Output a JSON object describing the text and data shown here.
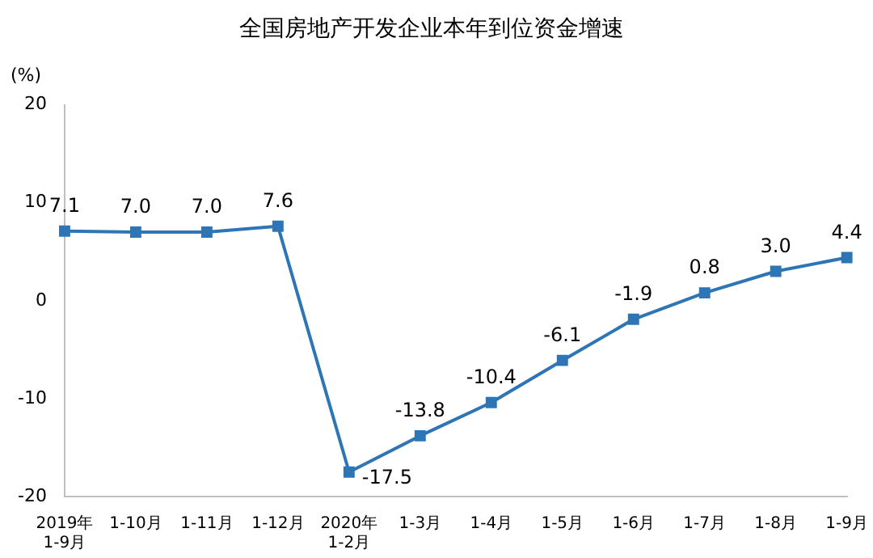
{
  "chart_data": {
    "type": "line",
    "title": "全国房地产开发企业本年到位资金增速",
    "ylabel": "(%)",
    "categories": [
      "2019年\n1-9月",
      "1-10月",
      "1-11月",
      "1-12月",
      "2020年\n1-2月",
      "1-3月",
      "1-4月",
      "1-5月",
      "1-6月",
      "1-7月",
      "1-8月",
      "1-9月"
    ],
    "series": [
      {
        "color": "#2e75b6",
        "values": [
          7.1,
          7.0,
          7.0,
          7.6,
          -17.5,
          -13.8,
          -10.4,
          -6.1,
          -1.9,
          0.8,
          3.0,
          4.4
        ],
        "value_labels": [
          "7.1",
          "7.0",
          "7.0",
          "7.6",
          "-17.5",
          "-13.8",
          "-10.4",
          "-6.1",
          "-1.9",
          "0.8",
          "3.0",
          "4.4"
        ]
      }
    ],
    "ylim": [
      -20,
      20
    ],
    "yticks": [
      -20,
      -10,
      0,
      10,
      20
    ],
    "grid": false,
    "legend": false,
    "marker": "square",
    "line_style": "solid"
  }
}
